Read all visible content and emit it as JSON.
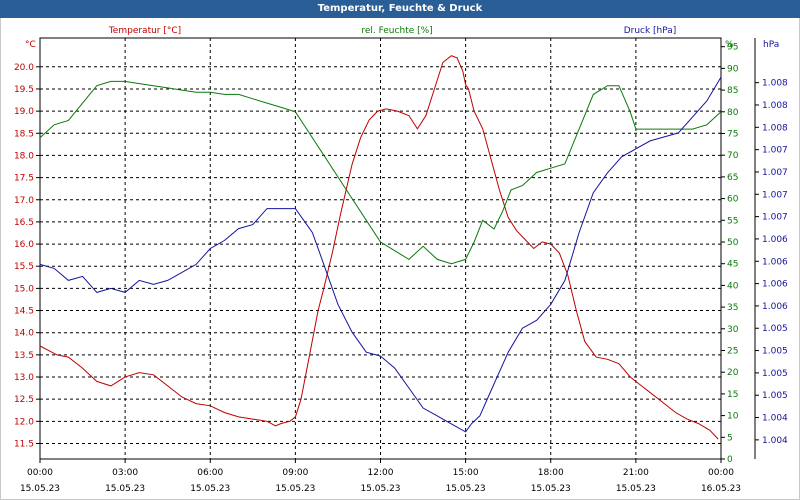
{
  "title": "Temperatur, Feuchte & Druck",
  "chart_data": {
    "type": "line",
    "x_tick_times": [
      "00:00",
      "03:00",
      "06:00",
      "09:00",
      "12:00",
      "15:00",
      "18:00",
      "21:00",
      "00:00"
    ],
    "x_tick_dates": [
      "15.05.23",
      "15.05.23",
      "15.05.23",
      "15.05.23",
      "15.05.23",
      "15.05.23",
      "15.05.23",
      "15.05.23",
      "16.05.23"
    ],
    "x_range_hours": [
      0,
      24
    ],
    "grid": true,
    "series": [
      {
        "name": "Temperatur [°C]",
        "unit": "°C",
        "axis": "left",
        "color": "#c00000",
        "ylim": [
          11.15,
          20.65
        ],
        "ticks": [
          "11.5",
          "12.0",
          "12.5",
          "13.0",
          "13.5",
          "14.0",
          "14.5",
          "15.0",
          "15.5",
          "16.0",
          "16.5",
          "17.0",
          "17.5",
          "18.0",
          "18.5",
          "19.0",
          "19.5",
          "20.0"
        ],
        "hours": [
          0,
          0.3,
          0.6,
          1,
          1.5,
          2,
          2.5,
          3,
          3.5,
          4,
          4.5,
          5,
          5.5,
          6,
          6.5,
          7,
          7.5,
          8,
          8.3,
          8.5,
          8.8,
          9,
          9.2,
          9.5,
          9.8,
          10,
          10.3,
          10.6,
          11,
          11.3,
          11.6,
          11.9,
          12.2,
          12.6,
          13,
          13.3,
          13.6,
          13.9,
          14.2,
          14.5,
          14.7,
          14.9,
          15,
          15.1,
          15.3,
          15.6,
          15.9,
          16.2,
          16.5,
          16.8,
          17.1,
          17.4,
          17.7,
          18,
          18.3,
          18.6,
          18.9,
          19.2,
          19.6,
          20,
          20.4,
          20.8,
          21.2,
          21.6,
          22,
          22.4,
          22.8,
          23.2,
          23.6,
          23.9
        ],
        "values": [
          13.7,
          13.6,
          13.5,
          13.45,
          13.2,
          12.9,
          12.8,
          13.0,
          13.1,
          13.05,
          12.8,
          12.55,
          12.4,
          12.35,
          12.2,
          12.1,
          12.05,
          12.0,
          11.9,
          11.95,
          12.0,
          12.1,
          12.5,
          13.5,
          14.5,
          15.0,
          15.8,
          16.7,
          17.8,
          18.4,
          18.8,
          19.0,
          19.05,
          19.0,
          18.9,
          18.6,
          18.9,
          19.5,
          20.1,
          20.25,
          20.2,
          19.9,
          19.6,
          19.5,
          19.0,
          18.6,
          17.9,
          17.2,
          16.6,
          16.3,
          16.1,
          15.9,
          16.05,
          16.0,
          15.8,
          15.3,
          14.5,
          13.8,
          13.45,
          13.4,
          13.3,
          13.0,
          12.8,
          12.6,
          12.4,
          12.2,
          12.05,
          11.95,
          11.8,
          11.6
        ]
      },
      {
        "name": "rel. Feuchte [%]",
        "unit": "%",
        "axis": "right-inner",
        "color": "#0a7a0a",
        "ylim": [
          0,
          97
        ],
        "ticks": [
          "0",
          "5",
          "10",
          "15",
          "20",
          "25",
          "30",
          "35",
          "40",
          "45",
          "50",
          "55",
          "60",
          "65",
          "70",
          "75",
          "80",
          "85",
          "90",
          "95"
        ],
        "hours": [
          0,
          0.5,
          1,
          1.5,
          2,
          2.5,
          3,
          3.5,
          4,
          4.5,
          5,
          5.5,
          6,
          6.5,
          7,
          7.5,
          8,
          8.5,
          9,
          9.5,
          10,
          10.5,
          11,
          11.5,
          12,
          12.5,
          13,
          13.5,
          14,
          14.5,
          15,
          15.3,
          15.6,
          16,
          16.3,
          16.6,
          17,
          17.5,
          18,
          18.5,
          19,
          19.5,
          20,
          20.4,
          20.8,
          21,
          21.5,
          22,
          22.5,
          23,
          23.5,
          24
        ],
        "values": [
          74,
          77,
          78,
          82,
          86,
          87,
          87,
          86.5,
          86,
          85.5,
          85,
          84.5,
          84.5,
          84,
          84,
          83,
          82,
          81,
          80,
          75,
          70,
          65,
          60,
          55,
          50,
          48,
          46,
          49,
          46,
          45,
          46,
          50,
          55,
          53,
          57,
          62,
          63,
          66,
          67,
          68,
          76,
          84,
          86,
          86,
          80,
          76,
          76,
          76,
          76,
          76,
          77,
          80
        ]
      },
      {
        "name": "Druck [hPa]",
        "unit": "hPa",
        "axis": "right-outer",
        "color": "#1414a0",
        "ylim": [
          1003.66,
          1008.94
        ],
        "ticks": [
          "1.004",
          "1.004",
          "1.005",
          "1.005",
          "1.005",
          "1.005",
          "1.006",
          "1.006",
          "1.006",
          "1.006",
          "1.007",
          "1.007",
          "1.007",
          "1.007",
          "1.008",
          "1.008",
          "1.008"
        ],
        "hours": [
          0,
          0.5,
          1,
          1.5,
          2,
          2.5,
          3,
          3.5,
          4,
          4.5,
          5,
          5.5,
          6,
          6.5,
          7,
          7.5,
          8,
          8.5,
          9,
          9.3,
          9.6,
          10,
          10.5,
          11,
          11.5,
          12,
          12.5,
          13,
          13.5,
          14,
          14.5,
          15,
          15.2,
          15.5,
          16,
          16.5,
          17,
          17.5,
          18,
          18.5,
          19,
          19.5,
          20,
          20.5,
          21,
          21.5,
          22,
          22.5,
          23,
          23.5,
          24
        ],
        "values": [
          1006.1,
          1006.05,
          1005.9,
          1005.95,
          1005.75,
          1005.8,
          1005.75,
          1005.9,
          1005.85,
          1005.9,
          1006.0,
          1006.1,
          1006.3,
          1006.4,
          1006.55,
          1006.6,
          1006.8,
          1006.8,
          1006.8,
          1006.65,
          1006.5,
          1006.1,
          1005.6,
          1005.25,
          1005.0,
          1004.95,
          1004.8,
          1004.55,
          1004.3,
          1004.2,
          1004.1,
          1004.0,
          1004.1,
          1004.2,
          1004.6,
          1005.0,
          1005.3,
          1005.4,
          1005.6,
          1005.9,
          1006.5,
          1007.0,
          1007.25,
          1007.45,
          1007.55,
          1007.65,
          1007.7,
          1007.75,
          1007.95,
          1008.15,
          1008.45
        ]
      }
    ]
  }
}
